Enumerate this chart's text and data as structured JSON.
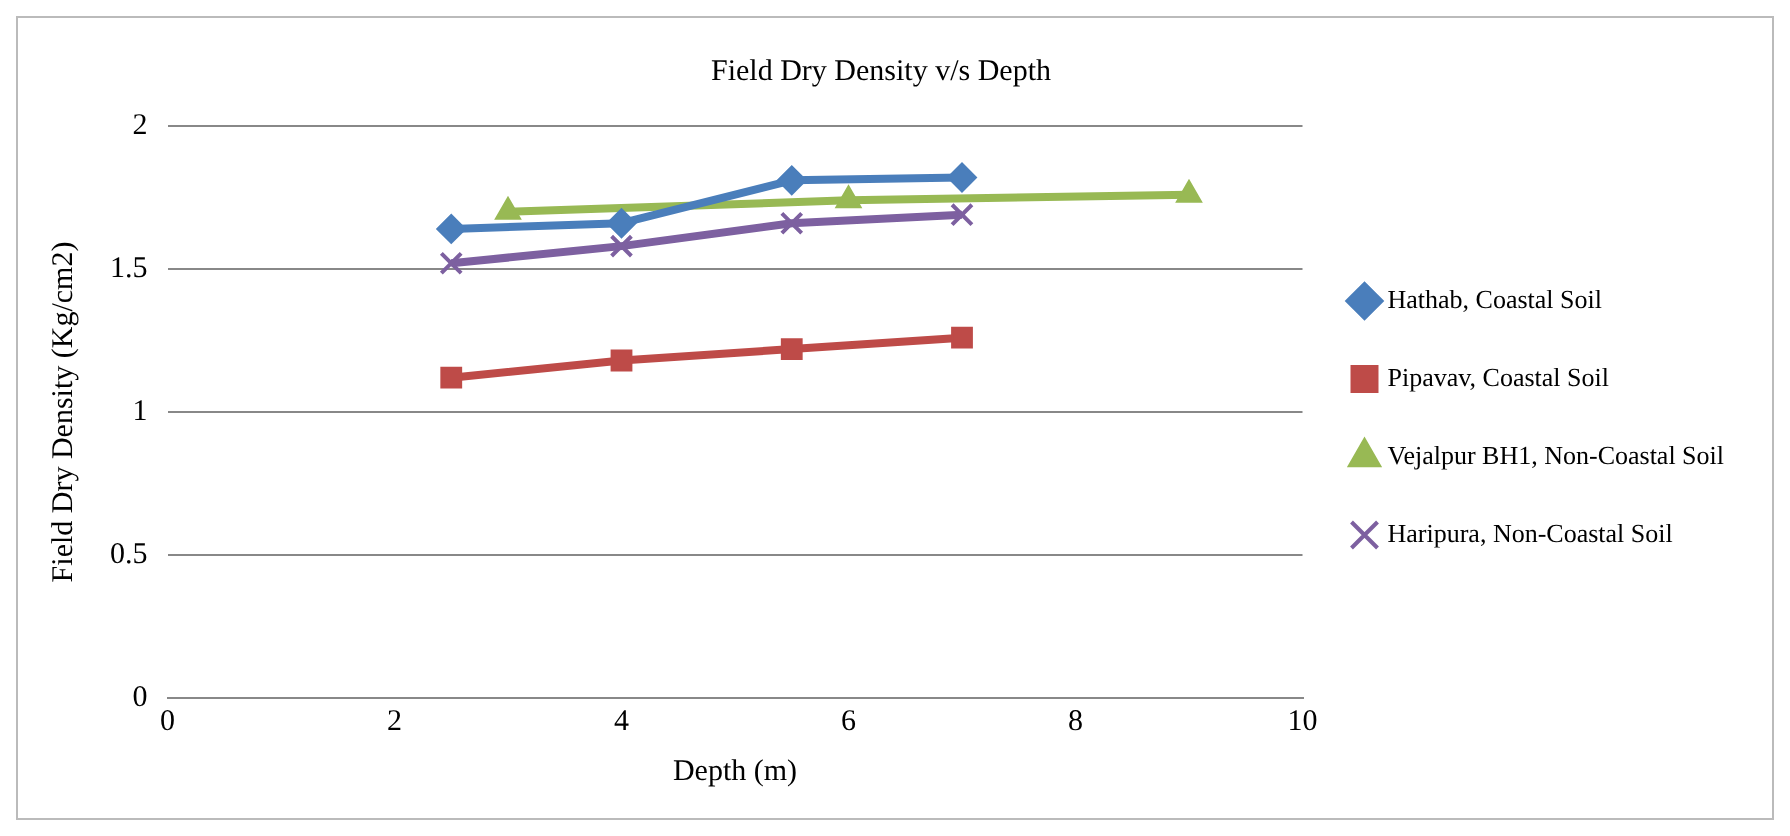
{
  "chart_data": {
    "type": "line",
    "title": "Field Dry Density v/s Depth",
    "xlabel": "Depth (m)",
    "ylabel": "Field Dry Density (Kg/cm2)",
    "xlim": [
      0,
      10
    ],
    "xticks": [
      0,
      2,
      4,
      6,
      8,
      10
    ],
    "ylim": [
      0,
      2
    ],
    "yticks": [
      0,
      0.5,
      1,
      1.5,
      2
    ],
    "grid": "y",
    "legend": "right",
    "series": [
      {
        "name": "Hathab, Coastal Soil",
        "color": "#4a7ebb",
        "marker": "diamond",
        "x": [
          2.5,
          4,
          5.5,
          7
        ],
        "values": [
          1.64,
          1.66,
          1.81,
          1.82
        ]
      },
      {
        "name": "Pipavav, Coastal Soil",
        "color": "#be4b48",
        "marker": "square",
        "x": [
          2.5,
          4,
          5.5,
          7
        ],
        "values": [
          1.12,
          1.18,
          1.22,
          1.26
        ]
      },
      {
        "name": "Vejalpur BH1, Non-Coastal Soil",
        "color": "#98b954",
        "marker": "triangle",
        "x": [
          3,
          6,
          9
        ],
        "values": [
          1.7,
          1.74,
          1.76
        ]
      },
      {
        "name": "Haripura, Non-Coastal Soil",
        "color": "#7d60a0",
        "marker": "cross",
        "x": [
          2.5,
          4,
          5.5,
          7
        ],
        "values": [
          1.52,
          1.58,
          1.66,
          1.69
        ]
      }
    ]
  }
}
